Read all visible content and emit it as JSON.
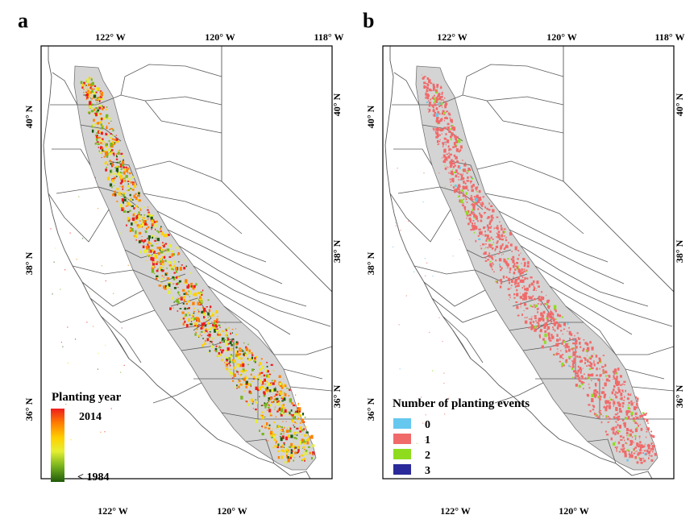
{
  "panels": [
    {
      "letter": "a",
      "top_ticks": [
        "122° W",
        "120° W",
        "118° W"
      ],
      "bottom_ticks": [
        "122° W",
        "120° W"
      ],
      "left_ticks": [
        "40° N",
        "38° N",
        "36° N"
      ],
      "right_ticks": [
        "40° N",
        "38° N",
        "36° N"
      ],
      "legend": {
        "title": "Planting year",
        "max_label": "2014",
        "min_label": "< 1984",
        "ramp_colors": [
          "#ee1c1c",
          "#ff7f00",
          "#ffd000",
          "#e6ef33",
          "#7ab51d",
          "#1f5a0a"
        ]
      }
    },
    {
      "letter": "b",
      "top_ticks": [
        "122° W",
        "120° W",
        "118° W"
      ],
      "bottom_ticks": [
        "122° W",
        "120° W"
      ],
      "left_ticks": [
        "40° N",
        "38° N",
        "36° N"
      ],
      "right_ticks": [
        "40° N",
        "38° N",
        "36° N"
      ],
      "legend": {
        "title": "Number of planting events",
        "items": [
          {
            "label": "0",
            "color": "#66c8ee"
          },
          {
            "label": "1",
            "color": "#f06a6a"
          },
          {
            "label": "2",
            "color": "#8fdc1f"
          },
          {
            "label": "3",
            "color": "#2a2a9a"
          }
        ]
      }
    }
  ],
  "colors": {
    "valley_fill": "#d4d4d4",
    "county_lines": "#5a5a5a",
    "map_border": "#000000"
  }
}
